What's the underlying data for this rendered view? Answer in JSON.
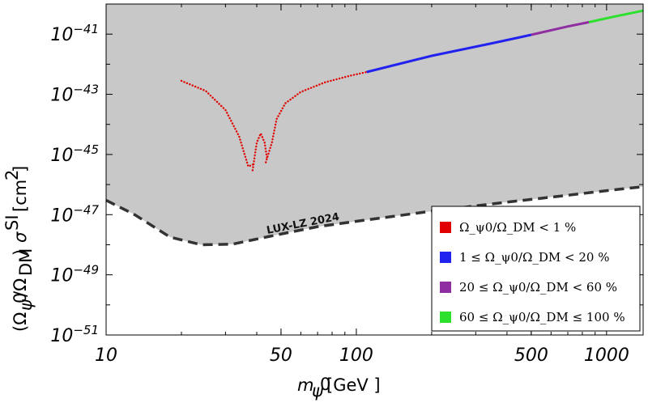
{
  "chart_data": {
    "type": "scatter",
    "xlabel": "m_ψ0 [GeV ]",
    "ylabel": "(Ω_ψ0/Ω_DM) σ^SI [cm^2]",
    "xscale": "log",
    "yscale": "log",
    "xlim": [
      10,
      1400
    ],
    "ylim": [
      1e-51,
      1e-40
    ],
    "x_ticks": [
      {
        "value": 10,
        "label": "10"
      },
      {
        "value": 50,
        "label": "50"
      },
      {
        "value": 100,
        "label": "100"
      },
      {
        "value": 500,
        "label": "500"
      },
      {
        "value": 1000,
        "label": "1000"
      }
    ],
    "y_ticks": [
      {
        "exp": -41,
        "base": "10",
        "sup": "−41"
      },
      {
        "exp": -43,
        "base": "10",
        "sup": "−43"
      },
      {
        "exp": -45,
        "base": "10",
        "sup": "−45"
      },
      {
        "exp": -47,
        "base": "10",
        "sup": "−47"
      },
      {
        "exp": -49,
        "base": "10",
        "sup": "−49"
      },
      {
        "exp": -51,
        "base": "10",
        "sup": "−51"
      }
    ],
    "exclusion": {
      "label": "LUX-LZ 2024",
      "fill_color": "#c8c8c8",
      "line_color": "#333333",
      "points": [
        [
          10,
          3e-47
        ],
        [
          13,
          1e-47
        ],
        [
          18,
          1.8e-48
        ],
        [
          24,
          1e-48
        ],
        [
          32,
          1.05e-48
        ],
        [
          45,
          1.9e-48
        ],
        [
          70,
          4e-48
        ],
        [
          100,
          6e-48
        ],
        [
          200,
          1.3e-47
        ],
        [
          400,
          2.6e-47
        ],
        [
          700,
          4.4e-47
        ],
        [
          1000,
          6.3e-47
        ],
        [
          1400,
          8.5e-47
        ]
      ]
    },
    "series": [
      {
        "name": "Ω_ψ0/Ω_DM < 1 %",
        "color": "#e00000",
        "segments": [
          {
            "style": "dotted",
            "points": [
              [
                20,
                2.8e-43
              ],
              [
                25,
                1.3e-43
              ],
              [
                30,
                3e-44
              ],
              [
                34,
                4e-45
              ],
              [
                37,
                4e-46
              ],
              [
                39.5,
                5e-46
              ]
            ]
          },
          {
            "style": "dotted",
            "points": [
              [
                38.5,
                3e-46
              ],
              [
                40,
                2.5e-45
              ],
              [
                41.5,
                5e-45
              ],
              [
                43,
                2.5e-45
              ],
              [
                44,
                7e-46
              ]
            ]
          },
          {
            "style": "dotted",
            "points": [
              [
                43.5,
                5.5e-46
              ],
              [
                46,
                2.5e-45
              ],
              [
                48,
                1.5e-44
              ],
              [
                52,
                5e-44
              ],
              [
                60,
                1.2e-43
              ],
              [
                75,
                2.5e-43
              ],
              [
                95,
                4.2e-43
              ],
              [
                110,
                5.5e-43
              ]
            ]
          }
        ]
      },
      {
        "name": "1 ≤ Ω_ψ0/Ω_DM < 20 %",
        "color": "#2222ee",
        "segments": [
          {
            "style": "solid",
            "points": [
              [
                110,
                5.5e-43
              ],
              [
                200,
                1.9e-42
              ],
              [
                350,
                5e-42
              ],
              [
                500,
                9.5e-42
              ]
            ]
          }
        ]
      },
      {
        "name": "20 ≤ Ω_ψ0/Ω_DM < 60 %",
        "color": "#8e2ea0",
        "segments": [
          {
            "style": "solid",
            "points": [
              [
                500,
                9.5e-42
              ],
              [
                700,
                1.8e-41
              ],
              [
                850,
                2.5e-41
              ]
            ]
          }
        ]
      },
      {
        "name": "60 ≤ Ω_ψ0/Ω_DM ≤ 100 %",
        "color": "#2ee02e",
        "segments": [
          {
            "style": "solid",
            "points": [
              [
                850,
                2.5e-41
              ],
              [
                1100,
                4e-41
              ],
              [
                1400,
                6e-41
              ]
            ]
          }
        ]
      }
    ],
    "legend": {
      "position": "bottom-right",
      "entries": [
        {
          "color": "#e00000",
          "label": "Ω_ψ0/Ω_DM < 1 %"
        },
        {
          "color": "#2222ee",
          "label": "1 ≤ Ω_ψ0/Ω_DM < 20 %"
        },
        {
          "color": "#8e2ea0",
          "label": "20 ≤ Ω_ψ0/Ω_DM < 60 %"
        },
        {
          "color": "#2ee02e",
          "label": "60 ≤ Ω_ψ0/Ω_DM ≤ 100 %"
        }
      ]
    }
  }
}
